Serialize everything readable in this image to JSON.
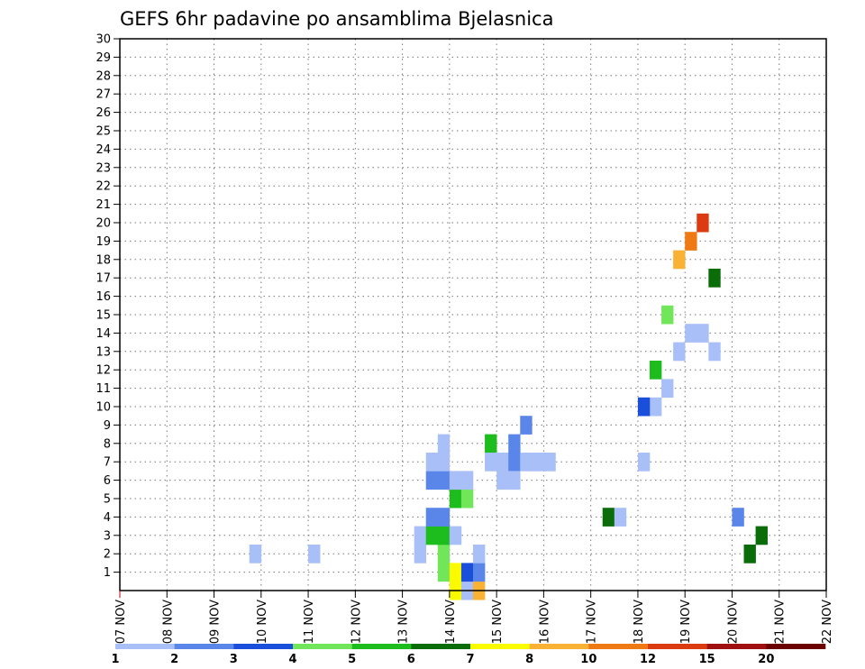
{
  "chart_data": {
    "type": "heatmap",
    "title": "GEFS 6hr padavine po ansamblima Bjelasnica",
    "x_dates": [
      "07 NOV",
      "08 NOV",
      "09 NOV",
      "10 NOV",
      "11 NOV",
      "12 NOV",
      "13 NOV",
      "14 NOV",
      "15 NOV",
      "16 NOV",
      "17 NOV",
      "18 NOV",
      "19 NOV",
      "20 NOV",
      "21 NOV",
      "22 NOV"
    ],
    "x_step_hours": 6,
    "y_members": [
      "1",
      "2",
      "3",
      "4",
      "5",
      "6",
      "7",
      "8",
      "9",
      "10",
      "11",
      "12",
      "13",
      "14",
      "15",
      "16",
      "17",
      "18",
      "19",
      "20",
      "21",
      "22",
      "23",
      "24",
      "25",
      "26",
      "27",
      "28",
      "29",
      "30"
    ],
    "grid": true,
    "colorbar": {
      "labels": [
        "1",
        "2",
        "3",
        "4",
        "5",
        "6",
        "7",
        "8",
        "10",
        "12",
        "15",
        "20"
      ],
      "colors": [
        "#a9bff7",
        "#5a86ea",
        "#1a4fdc",
        "#72e65a",
        "#1ebd1e",
        "#0a6d0a",
        "#fbfb00",
        "#f9b233",
        "#ef7a14",
        "#dc3a10",
        "#a01010",
        "#6a0000"
      ]
    },
    "cells": [
      [
        27,
        1,
        4
      ],
      [
        27,
        2,
        4
      ],
      [
        27,
        3,
        5
      ],
      [
        27,
        4,
        2
      ],
      [
        28,
        0,
        7
      ],
      [
        28,
        1,
        7
      ],
      [
        28,
        3,
        1
      ],
      [
        29,
        0,
        1
      ],
      [
        29,
        1,
        3
      ],
      [
        30,
        0,
        8
      ],
      [
        30,
        1,
        2
      ],
      [
        30,
        2,
        1
      ],
      [
        16,
        2,
        1
      ],
      [
        11,
        2,
        1
      ],
      [
        25,
        2,
        1
      ],
      [
        25,
        3,
        1
      ],
      [
        26,
        3,
        5
      ],
      [
        26,
        4,
        2
      ],
      [
        26,
        6,
        2
      ],
      [
        26,
        7,
        1
      ],
      [
        27,
        6,
        2
      ],
      [
        27,
        7,
        1
      ],
      [
        28,
        5,
        5
      ],
      [
        29,
        5,
        4
      ],
      [
        28,
        6,
        1
      ],
      [
        29,
        6,
        1
      ],
      [
        27,
        8,
        1
      ],
      [
        31,
        8,
        5
      ],
      [
        32,
        7,
        1
      ],
      [
        33,
        7,
        2
      ],
      [
        33,
        8,
        2
      ],
      [
        34,
        9,
        2
      ],
      [
        31,
        7,
        1
      ],
      [
        32,
        6,
        1
      ],
      [
        33,
        6,
        1
      ],
      [
        34,
        7,
        1
      ],
      [
        35,
        7,
        1
      ],
      [
        36,
        7,
        1
      ],
      [
        41,
        4,
        6
      ],
      [
        42,
        4,
        1
      ],
      [
        44,
        7,
        1
      ],
      [
        45,
        10,
        1
      ],
      [
        46,
        11,
        1
      ],
      [
        47,
        13,
        1
      ],
      [
        48,
        14,
        1
      ],
      [
        49,
        14,
        1
      ],
      [
        50,
        13,
        1
      ],
      [
        44,
        10,
        3
      ],
      [
        45,
        12,
        5
      ],
      [
        46,
        15,
        4
      ],
      [
        47,
        18,
        8
      ],
      [
        48,
        19,
        9
      ],
      [
        49,
        20,
        10
      ],
      [
        50,
        17,
        6
      ],
      [
        54,
        3,
        6
      ],
      [
        53,
        2,
        6
      ],
      [
        52,
        4,
        2
      ]
    ],
    "cells_note": "values are colorbar class indices 1-12"
  }
}
